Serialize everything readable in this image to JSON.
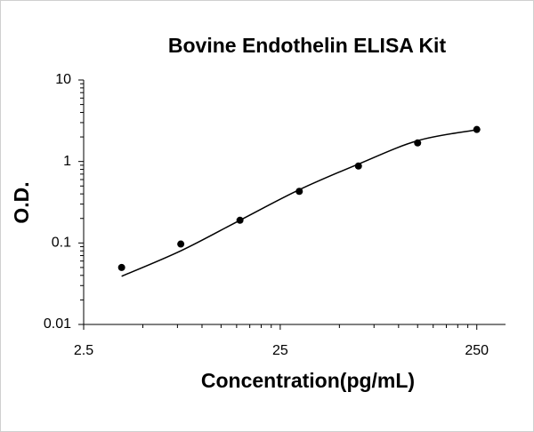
{
  "chart_data": {
    "type": "scatter",
    "title": "Bovine Endothelin  ELISA Kit",
    "xlabel": "Concentration(pg/mL)",
    "ylabel": "O.D.",
    "x": [
      3.9,
      7.8,
      15.6,
      31.25,
      62.5,
      125,
      250
    ],
    "values": [
      0.05,
      0.097,
      0.19,
      0.43,
      0.88,
      1.69,
      2.47
    ],
    "color": "#000000",
    "fit": {
      "x": [
        3.9,
        7.8,
        15.6,
        31.25,
        62.5,
        125,
        250
      ],
      "values": [
        0.039,
        0.08,
        0.19,
        0.45,
        0.93,
        1.8,
        2.45
      ],
      "color": "#000000"
    },
    "xscale": "log",
    "yscale": "log",
    "xlim": [
      2.5,
      350
    ],
    "xticks": [
      2.5,
      25,
      250
    ],
    "ylim": [
      0.01,
      10
    ],
    "yticks": [
      0.01,
      0.1,
      1,
      10
    ],
    "grid": false
  }
}
